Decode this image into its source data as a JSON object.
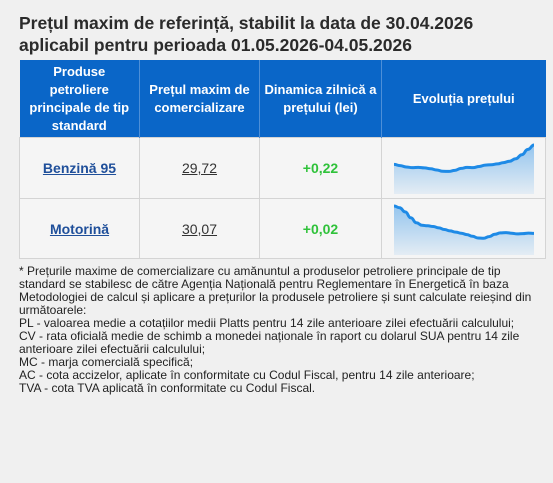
{
  "title": {
    "line1": "Prețul maxim de referință, stabilit la data de 30.04.2026",
    "line2": "aplicabil pentru perioada 01.05.2026-04.05.2026"
  },
  "table": {
    "headers": [
      "Produse petroliere principale de tip standard",
      "Prețul maxim de comercializare",
      "Dinamica zilnică a prețului (lei)",
      "Evoluția prețului"
    ],
    "rows": [
      {
        "product": "Benzină 95",
        "price": "29,72",
        "delta": "+0,22"
      },
      {
        "product": "Motorină",
        "price": "30,07",
        "delta": "+0,02"
      }
    ]
  },
  "chart_data": [
    {
      "type": "area",
      "values": [
        10.0,
        9.3,
        8.5,
        8.2,
        8.3,
        8.0,
        7.5,
        6.8,
        6.1,
        6.0,
        6.6,
        7.7,
        8.3,
        8.2,
        8.8,
        9.6,
        9.8,
        10.3,
        11.0,
        11.8,
        13.2,
        15.5,
        18.5,
        21.0
      ],
      "color": "#1e8ae6"
    },
    {
      "type": "area",
      "values": [
        22.0,
        21.0,
        18.5,
        15.0,
        12.0,
        10.5,
        10.2,
        9.8,
        9.0,
        8.0,
        7.2,
        6.5,
        5.8,
        5.0,
        4.0,
        3.0,
        2.8,
        3.8,
        5.2,
        6.0,
        6.2,
        5.8,
        5.4,
        5.6,
        5.9,
        5.7
      ],
      "color": "#1e8ae6"
    }
  ],
  "notes": [
    "* Prețurile maxime de comercializare cu amănuntul a produselor petroliere principale de tip standard se stabilesc de către Agenția Națională pentru Reglementare în Energetică în baza Metodologiei de calcul și aplicare a prețurilor la produsele petroliere și sunt calculate reieșind din următoarele:",
    "PL - valoarea medie a cotațiilor medii Platts pentru 14 zile anterioare zilei efectuării calculului;",
    "CV - rata oficială medie de schimb a monedei naționale în raport cu dolarul SUA pentru 14 zile anterioare zilei efectuării calculului;",
    "MC - marja comercială specifică;",
    "AC - cota accizelor, aplicate în conformitate cu Codul Fiscal, pentru 14 zile anterioare;",
    "TVA - cota TVA aplicată în conformitate cu Codul Fiscal."
  ]
}
